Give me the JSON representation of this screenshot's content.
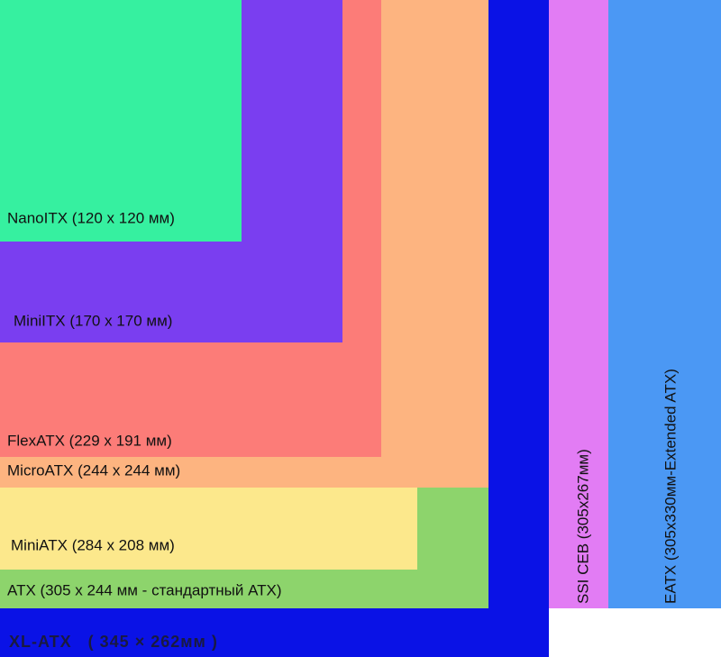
{
  "boards": [
    {
      "label": "NanoITX (120 x 120 мм)"
    },
    {
      "label": "MiniITX (170 x 170 мм)"
    },
    {
      "label": "FlexATX (229 x 191 мм)"
    },
    {
      "label": "MicroATX (244 x 244 мм)"
    },
    {
      "label": "MiniATX (284 x 208 мм)"
    },
    {
      "label": "ATX (305 x 244 мм - стандартный ATX)"
    },
    {
      "label": "XL-ATX   ( 345 × 262мм )"
    },
    {
      "label": "SSI CEB (305x267мм)"
    },
    {
      "label": "EATX (305x330мм-Extended ATX)"
    }
  ]
}
